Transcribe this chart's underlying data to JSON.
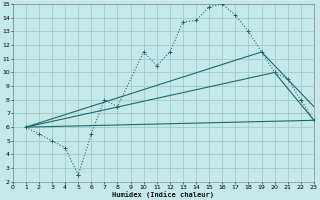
{
  "bg_color": "#c5e8e8",
  "grid_color": "#a0cccc",
  "line_color": "#1a6b6b",
  "xlabel": "Humidex (Indice chaleur)",
  "xlim": [
    0,
    23
  ],
  "ylim": [
    2,
    15
  ],
  "xticks": [
    0,
    1,
    2,
    3,
    4,
    5,
    6,
    7,
    8,
    9,
    10,
    11,
    12,
    13,
    14,
    15,
    16,
    17,
    18,
    19,
    20,
    21,
    22,
    23
  ],
  "yticks": [
    2,
    3,
    4,
    5,
    6,
    7,
    8,
    9,
    10,
    11,
    12,
    13,
    14,
    15
  ],
  "main_x": [
    1,
    2,
    3,
    4,
    5,
    5,
    6,
    7,
    8,
    10,
    11,
    12,
    13,
    14,
    15,
    16,
    17,
    18,
    19,
    20,
    21,
    22,
    23
  ],
  "main_y": [
    6,
    5.5,
    5.0,
    4.5,
    2.5,
    2.5,
    5.5,
    8.0,
    7.5,
    11.5,
    10.5,
    11.5,
    13.7,
    13.8,
    14.8,
    15.0,
    14.2,
    13.0,
    11.5,
    10.0,
    9.5,
    8.0,
    6.5
  ],
  "line2_x": [
    1,
    19,
    23
  ],
  "line2_y": [
    6,
    11.5,
    7.5
  ],
  "line3_x": [
    1,
    20,
    23
  ],
  "line3_y": [
    6,
    10.0,
    6.5
  ],
  "line4_x": [
    1,
    23
  ],
  "line4_y": [
    6,
    6.5
  ]
}
